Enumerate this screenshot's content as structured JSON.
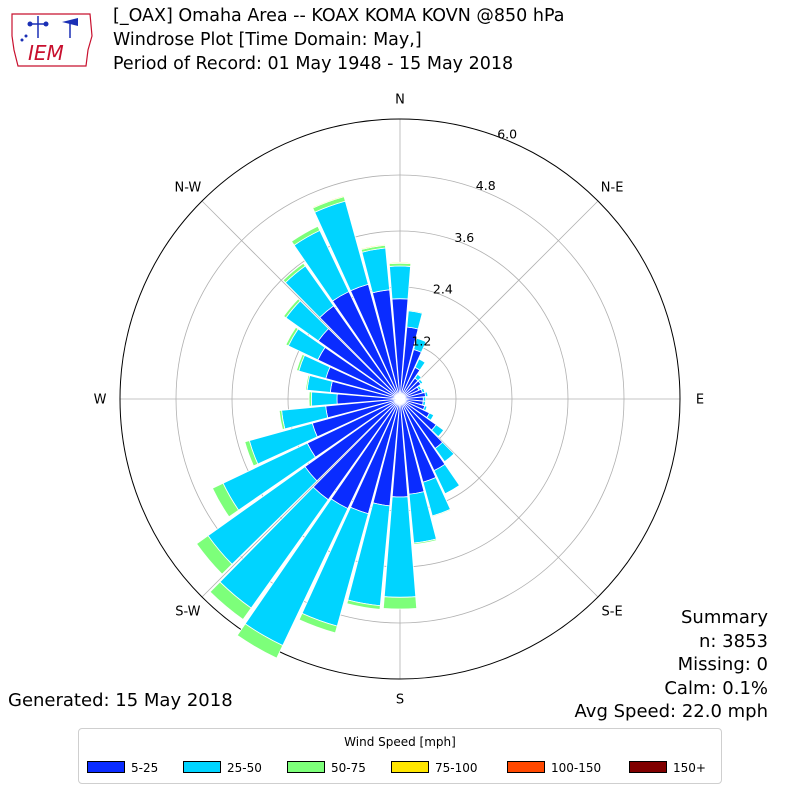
{
  "header": {
    "logo_text": "IEM",
    "title_line1": "[_OAX] Omaha Area -- KOAX KOMA KOVN @850 hPa",
    "title_line2": "Windrose Plot [Time Domain: May,]",
    "title_line3": "Period of Record: 01 May 1948 - 15 May 2018"
  },
  "summary": {
    "heading": "Summary",
    "n": "n: 3853",
    "missing": "Missing: 0",
    "calm": "Calm: 0.1%",
    "avg_speed": "Avg Speed: 22.0 mph"
  },
  "generated": "Generated: 15 May 2018",
  "legend": {
    "title": "Wind Speed [mph]",
    "items": [
      {
        "label": "5-25",
        "color": "#0a2cff"
      },
      {
        "label": "25-50",
        "color": "#00d4ff"
      },
      {
        "label": "50-75",
        "color": "#7dff7a"
      },
      {
        "label": "75-100",
        "color": "#ffe600"
      },
      {
        "label": "100-150",
        "color": "#ff4800"
      },
      {
        "label": "150+",
        "color": "#800000"
      }
    ]
  },
  "chart_data": {
    "type": "windrose",
    "direction_labels": [
      "N",
      "N-E",
      "E",
      "S-E",
      "S",
      "S-W",
      "W",
      "N-W"
    ],
    "radial_ticks": [
      1.2,
      2.4,
      3.6,
      4.8,
      6.0
    ],
    "rmax": 6.0,
    "bin_width_deg": 10,
    "bin_centers_deg": [
      0,
      10,
      20,
      30,
      40,
      50,
      60,
      70,
      80,
      90,
      100,
      110,
      120,
      130,
      140,
      150,
      160,
      170,
      180,
      190,
      200,
      210,
      220,
      230,
      240,
      250,
      260,
      270,
      280,
      290,
      300,
      310,
      320,
      330,
      340,
      350
    ],
    "series": [
      {
        "name": "5-25",
        "color": "#0a2cff",
        "values": [
          2.15,
          1.55,
          1.1,
          0.75,
          0.55,
          0.55,
          0.45,
          0.5,
          0.55,
          0.5,
          0.5,
          0.55,
          0.7,
          0.95,
          1.3,
          1.7,
          1.85,
          2.05,
          2.1,
          2.3,
          2.55,
          2.6,
          2.65,
          2.5,
          2.2,
          1.95,
          1.6,
          1.35,
          1.5,
          1.65,
          1.95,
          2.15,
          2.45,
          2.55,
          2.55,
          2.35
        ]
      },
      {
        "name": "25-50",
        "color": "#00d4ff",
        "values": [
          0.7,
          0.35,
          0.25,
          0.2,
          0.1,
          0.05,
          0.05,
          0.05,
          0.05,
          0.05,
          0.05,
          0.05,
          0.1,
          0.2,
          0.35,
          0.55,
          0.75,
          1.05,
          2.15,
          2.15,
          2.5,
          3.25,
          2.85,
          2.55,
          2.0,
          1.4,
          0.95,
          0.55,
          0.5,
          0.6,
          0.7,
          0.85,
          1.05,
          1.45,
          1.85,
          0.9
        ]
      },
      {
        "name": "50-75",
        "color": "#7dff7a",
        "values": [
          0.06,
          0.02,
          0.01,
          0.0,
          0.0,
          0.0,
          0.0,
          0.0,
          0.0,
          0.0,
          0.0,
          0.0,
          0.0,
          0.0,
          0.01,
          0.01,
          0.02,
          0.03,
          0.25,
          0.08,
          0.15,
          0.3,
          0.3,
          0.3,
          0.25,
          0.1,
          0.05,
          0.05,
          0.03,
          0.05,
          0.06,
          0.06,
          0.07,
          0.1,
          0.1,
          0.06
        ]
      },
      {
        "name": "75-100",
        "color": "#ffe600",
        "values": [
          0.02,
          0.0,
          0.0,
          0.0,
          0.0,
          0.0,
          0.0,
          0.0,
          0.0,
          0.0,
          0.0,
          0.0,
          0.0,
          0.0,
          0.0,
          0.0,
          0.0,
          0.0,
          0.0,
          0.0,
          0.0,
          0.0,
          0.0,
          0.0,
          0.0,
          0.0,
          0.0,
          0.0,
          0.0,
          0.0,
          0.0,
          0.0,
          0.0,
          0.0,
          0.02,
          0.02
        ]
      }
    ]
  }
}
